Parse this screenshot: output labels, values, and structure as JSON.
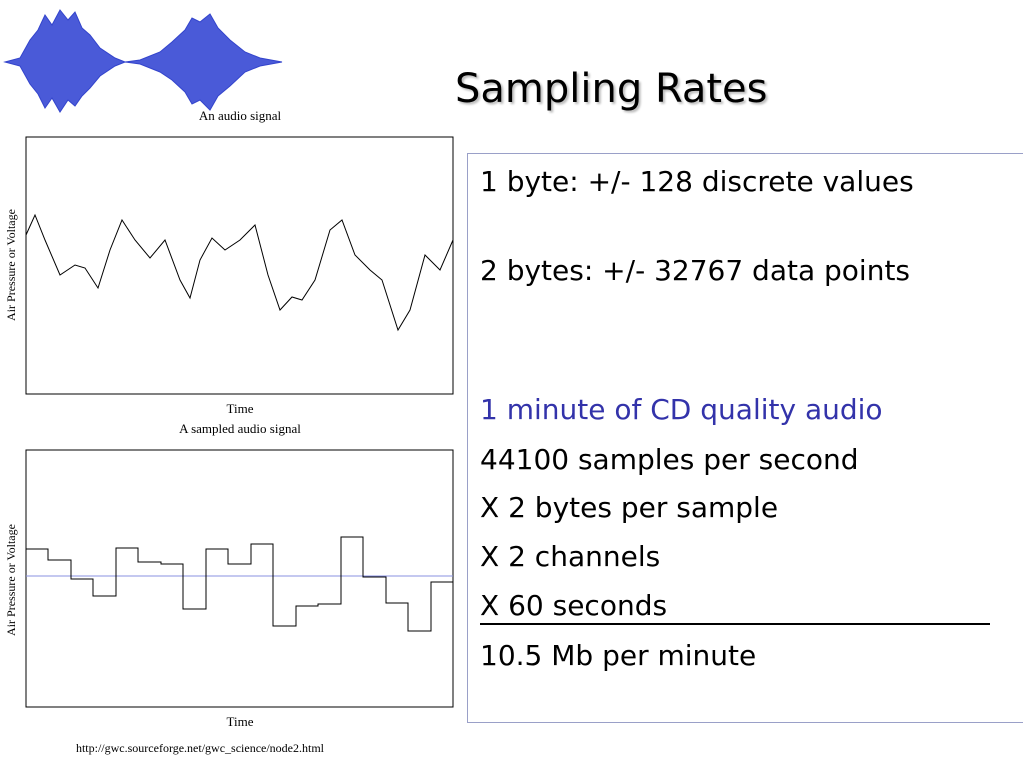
{
  "header": {
    "title": "Sampling Rates"
  },
  "figures": {
    "logo_caption": "An audio signal",
    "chart1": {
      "y_label": "Air Pressure or Voltage",
      "x_label": "Time"
    },
    "chart2_caption": "A sampled audio signal",
    "chart2": {
      "y_label": "Air Pressure or Voltage",
      "x_label": "Time"
    },
    "source": "http://gwc.sourceforge.net/gwc_science/node2.html"
  },
  "body": {
    "lines": [
      "1 byte: +/- 128 discrete values",
      "2 bytes: +/- 32767 data points",
      "1 minute of CD quality audio",
      "44100 samples per second",
      "X 2 bytes per sample",
      "X 2 channels",
      "X 60 seconds",
      "10.5 Mb per minute"
    ]
  }
}
